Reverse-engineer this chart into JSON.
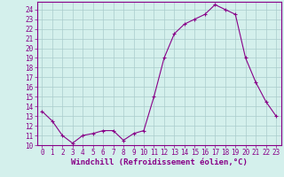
{
  "hours": [
    0,
    1,
    2,
    3,
    4,
    5,
    6,
    7,
    8,
    9,
    10,
    11,
    12,
    13,
    14,
    15,
    16,
    17,
    18,
    19,
    20,
    21,
    22,
    23
  ],
  "values": [
    13.5,
    12.5,
    11.0,
    10.2,
    11.0,
    11.2,
    11.5,
    11.5,
    10.5,
    11.2,
    11.5,
    15.0,
    19.0,
    21.5,
    22.5,
    23.0,
    23.5,
    24.5,
    24.0,
    23.5,
    19.0,
    16.5,
    14.5,
    13.0
  ],
  "line_color": "#880088",
  "marker": "+",
  "marker_size": 3,
  "bg_color": "#d4f0ec",
  "grid_color": "#aacccc",
  "xlabel": "Windchill (Refroidissement éolien,°C)",
  "xlabel_color": "#880088",
  "xlabel_fontsize": 6.5,
  "ylabel_ticks": [
    10,
    11,
    12,
    13,
    14,
    15,
    16,
    17,
    18,
    19,
    20,
    21,
    22,
    23,
    24
  ],
  "xlim": [
    -0.5,
    23.5
  ],
  "ylim": [
    10,
    24.8
  ],
  "tick_color": "#880088",
  "tick_fontsize": 5.5,
  "spine_color": "#880088",
  "border_color": "#880088",
  "linewidth": 0.8,
  "markeredgewidth": 0.8
}
